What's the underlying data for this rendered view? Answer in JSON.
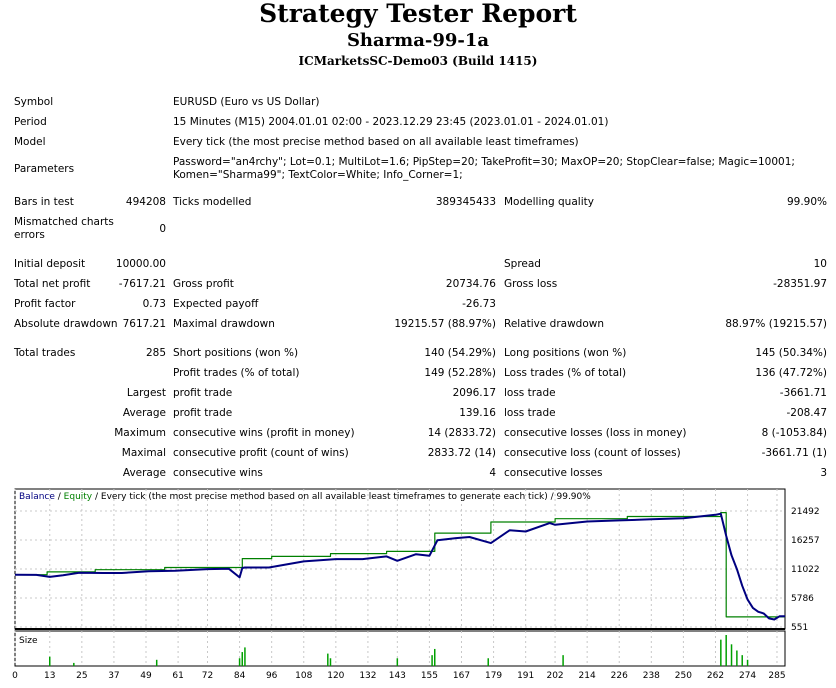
{
  "header": {
    "title": "Strategy Tester Report",
    "expert": "Sharma-99-1a",
    "server": "ICMarketsSC-Demo03 (Build 1415)"
  },
  "info": {
    "symbol_label": "Symbol",
    "symbol_value": "EURUSD (Euro vs US Dollar)",
    "period_label": "Period",
    "period_value": "15 Minutes (M15) 2004.01.01 02:00 - 2023.12.29 23:45 (2023.01.01 - 2024.01.01)",
    "model_label": "Model",
    "model_value": "Every tick (the most precise method based on all available least timeframes)",
    "parameters_label": "Parameters",
    "parameters_line1": "Password=\"an4rchy\"; Lot=0.1; MultiLot=1.6; PipStep=20; TakeProfit=30; MaxOP=20; StopClear=false; Magic=10001;",
    "parameters_line2": "Komen=\"Sharma99\"; TextColor=White; Info_Corner=1;"
  },
  "stats": {
    "bars_label": "Bars in test",
    "bars_value": "494208",
    "ticks_label": "Ticks modelled",
    "ticks_value": "389345433",
    "quality_label": "Modelling quality",
    "quality_value": "99.90%",
    "mismatch_label": "Mismatched charts errors",
    "mismatch_value": "0",
    "deposit_label": "Initial deposit",
    "deposit_value": "10000.00",
    "spread_label": "Spread",
    "spread_value": "10",
    "netprofit_label": "Total net profit",
    "netprofit_value": "-7617.21",
    "grossprofit_label": "Gross profit",
    "grossprofit_value": "20734.76",
    "grossloss_label": "Gross loss",
    "grossloss_value": "-28351.97",
    "pf_label": "Profit factor",
    "pf_value": "0.73",
    "payoff_label": "Expected payoff",
    "payoff_value": "-26.73",
    "absdd_label": "Absolute drawdown",
    "absdd_value": "7617.21",
    "maxdd_label": "Maximal drawdown",
    "maxdd_value": "19215.57 (88.97%)",
    "reldd_label": "Relative drawdown",
    "reldd_value": "88.97% (19215.57)",
    "trades_label": "Total trades",
    "trades_value": "285",
    "short_label": "Short positions (won %)",
    "short_value": "140 (54.29%)",
    "long_label": "Long positions (won %)",
    "long_value": "145 (50.34%)",
    "profittrades_label": "Profit trades (% of total)",
    "profittrades_value": "149 (52.28%)",
    "losstrades_label": "Loss trades (% of total)",
    "losstrades_value": "136 (47.72%)",
    "largest_label": "Largest",
    "largest_profit_label": "profit trade",
    "largest_profit_value": "2096.17",
    "largest_loss_label": "loss trade",
    "largest_loss_value": "-3661.71",
    "average_label": "Average",
    "average_profit_label": "profit trade",
    "average_profit_value": "139.16",
    "average_loss_label": "loss trade",
    "average_loss_value": "-208.47",
    "maximum_label": "Maximum",
    "max_wins_label": "consecutive wins (profit in money)",
    "max_wins_value": "14 (2833.72)",
    "max_losses_label": "consecutive losses (loss in money)",
    "max_losses_value": "8 (-1053.84)",
    "maximal_label": "Maximal",
    "maximal_profit_label": "consecutive profit (count of wins)",
    "maximal_profit_value": "2833.72 (14)",
    "maximal_loss_label": "consecutive loss (count of losses)",
    "maximal_loss_value": "-3661.71 (1)",
    "avg_cons_label": "Average",
    "avg_cons_wins_label": "consecutive wins",
    "avg_cons_wins_value": "4",
    "avg_cons_losses_label": "consecutive losses",
    "avg_cons_losses_value": "3"
  },
  "chart_data": {
    "type": "line",
    "legend": {
      "balance": "Balance",
      "sep1": " / ",
      "equity": "Equity",
      "rest": " / Every tick (the most precise method based on all available least timeframes to generate each tick) / 99.90%"
    },
    "colors": {
      "balance": "#008000",
      "equity": "#000080",
      "volume": "#00a000",
      "frame": "#000000"
    },
    "size_label": "Size",
    "y_ticks": [
      551,
      5786,
      11022,
      16257,
      21492
    ],
    "ylim": [
      551,
      21492
    ],
    "x_ticks": [
      0,
      13,
      25,
      37,
      49,
      61,
      72,
      84,
      96,
      108,
      120,
      132,
      143,
      155,
      167,
      179,
      191,
      202,
      214,
      226,
      238,
      250,
      262,
      274,
      285
    ],
    "xlim": [
      0,
      288
    ],
    "series": [
      {
        "key": "balance",
        "x": [
          0,
          12,
          12,
          30,
          30,
          56,
          56,
          85,
          85,
          96,
          96,
          118,
          118,
          139,
          139,
          157,
          157,
          178,
          178,
          202,
          202,
          229,
          229,
          264,
          264,
          266,
          266,
          288
        ],
        "values": [
          10000,
          10000,
          10500,
          10500,
          10900,
          10900,
          11300,
          11300,
          12900,
          12900,
          13300,
          13300,
          13800,
          13800,
          14200,
          14200,
          17500,
          17500,
          19500,
          19500,
          20100,
          20100,
          20500,
          20500,
          21200,
          21200,
          2383,
          2383
        ]
      },
      {
        "key": "equity",
        "x": [
          0,
          8,
          13,
          18,
          24,
          33,
          40,
          50,
          60,
          72,
          80,
          84,
          85,
          86,
          95,
          108,
          120,
          130,
          139,
          143,
          150,
          155,
          158,
          165,
          170,
          178,
          185,
          191,
          200,
          202,
          214,
          226,
          238,
          250,
          262,
          264,
          266,
          268,
          270,
          272,
          274,
          276,
          278,
          280,
          282,
          284,
          286,
          288
        ],
        "values": [
          10000,
          9950,
          9600,
          9900,
          10350,
          10300,
          10300,
          10600,
          10700,
          11000,
          11050,
          9500,
          11200,
          11300,
          11300,
          12400,
          12800,
          12800,
          13300,
          12500,
          13700,
          13400,
          16200,
          16600,
          16800,
          15700,
          18000,
          17800,
          19300,
          19000,
          19600,
          19800,
          20000,
          20200,
          20800,
          21000,
          17000,
          13500,
          11000,
          8000,
          5500,
          4000,
          3300,
          3000,
          2100,
          1900,
          2500,
          2500
        ]
      }
    ],
    "volume": [
      {
        "x": 13,
        "v": 0.3
      },
      {
        "x": 22,
        "v": 0.1
      },
      {
        "x": 53,
        "v": 0.2
      },
      {
        "x": 84,
        "v": 0.25
      },
      {
        "x": 85,
        "v": 0.45
      },
      {
        "x": 86,
        "v": 0.6
      },
      {
        "x": 117,
        "v": 0.4
      },
      {
        "x": 118,
        "v": 0.25
      },
      {
        "x": 143,
        "v": 0.25
      },
      {
        "x": 156,
        "v": 0.35
      },
      {
        "x": 157,
        "v": 0.55
      },
      {
        "x": 177,
        "v": 0.25
      },
      {
        "x": 205,
        "v": 0.35
      },
      {
        "x": 264,
        "v": 0.85
      },
      {
        "x": 266,
        "v": 1.0
      },
      {
        "x": 268,
        "v": 0.7
      },
      {
        "x": 270,
        "v": 0.5
      },
      {
        "x": 272,
        "v": 0.35
      },
      {
        "x": 274,
        "v": 0.2
      }
    ]
  }
}
